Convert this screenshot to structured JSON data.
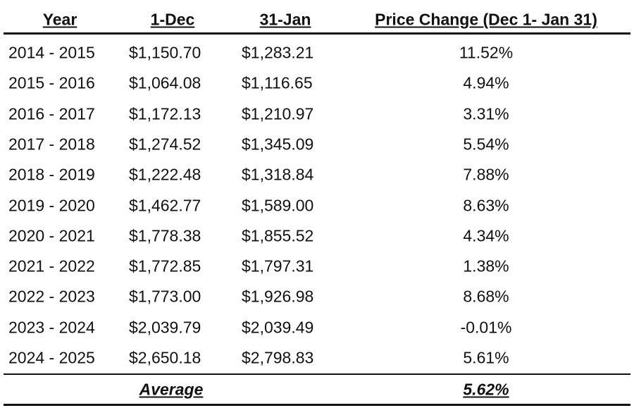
{
  "table": {
    "headers": [
      "Year",
      "1-Dec",
      "31-Jan",
      "Price Change (Dec 1- Jan 31)"
    ],
    "rows": [
      [
        "2014 - 2015",
        "$1,150.70",
        "$1,283.21",
        "11.52%"
      ],
      [
        "2015 - 2016",
        "$1,064.08",
        "$1,116.65",
        "4.94%"
      ],
      [
        "2016 - 2017",
        "$1,172.13",
        "$1,210.97",
        "3.31%"
      ],
      [
        "2017 - 2018",
        "$1,274.52",
        "$1,345.09",
        "5.54%"
      ],
      [
        "2018 - 2019",
        "$1,222.48",
        "$1,318.84",
        "7.88%"
      ],
      [
        "2019 - 2020",
        "$1,462.77",
        "$1,589.00",
        "8.63%"
      ],
      [
        "2020 - 2021",
        "$1,778.38",
        "$1,855.52",
        "4.34%"
      ],
      [
        "2021 - 2022",
        "$1,772.85",
        "$1,797.31",
        "1.38%"
      ],
      [
        "2022 - 2023",
        "$1,773.00",
        "$1,926.98",
        "8.68%"
      ],
      [
        "2023 - 2024",
        "$2,039.79",
        "$2,039.49",
        "-0.01%"
      ],
      [
        "2024 - 2025",
        "$2,650.18",
        "$2,798.83",
        "5.61%"
      ]
    ],
    "footer": {
      "label": "Average",
      "value": "5.62%"
    }
  }
}
